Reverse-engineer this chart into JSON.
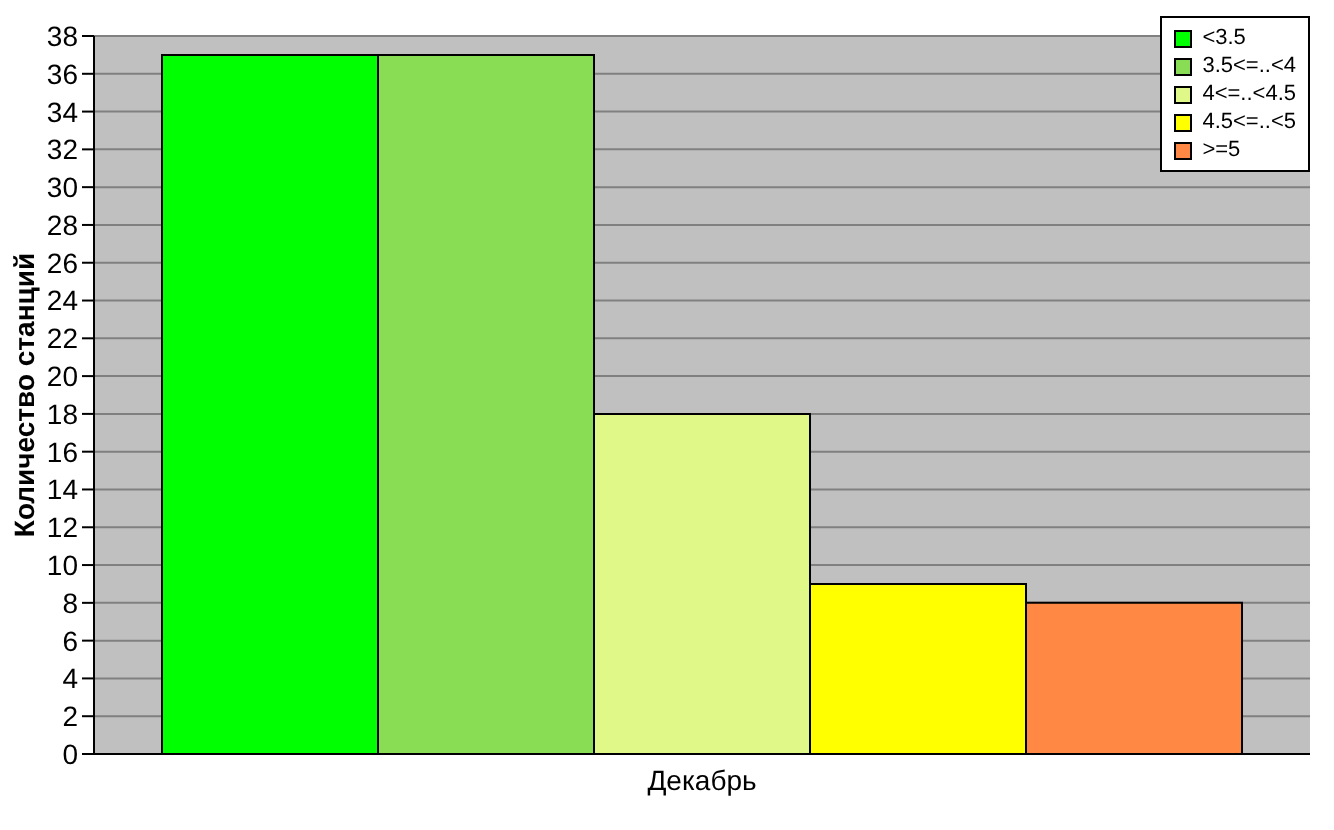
{
  "chart_data": {
    "type": "bar",
    "ylabel": "Количество станций",
    "categories": [
      "Декабрь"
    ],
    "series": [
      {
        "name": "<3.5",
        "color": "#00ff00",
        "values": [
          37
        ]
      },
      {
        "name": "3.5<=..<4",
        "color": "#88dd55",
        "values": [
          37
        ]
      },
      {
        "name": "4<=..<4.5",
        "color": "#e0f888",
        "values": [
          18
        ]
      },
      {
        "name": "4.5<=..<5",
        "color": "#ffff00",
        "values": [
          9
        ]
      },
      {
        "name": ">=5",
        "color": "#ff8844",
        "values": [
          8
        ]
      }
    ],
    "ylim": [
      0,
      38
    ],
    "yticks": [
      0,
      2,
      4,
      6,
      8,
      10,
      12,
      14,
      16,
      18,
      20,
      22,
      24,
      26,
      28,
      30,
      32,
      34,
      36,
      38
    ],
    "grid": "y",
    "legend": "top right"
  }
}
